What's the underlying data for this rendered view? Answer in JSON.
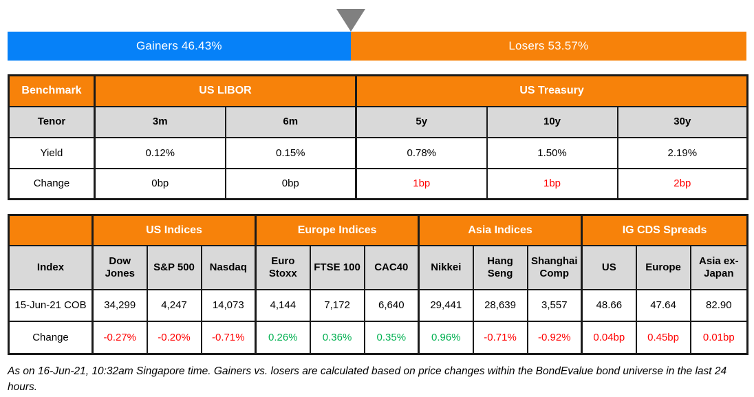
{
  "meter": {
    "triangle_icon": "down-triangle",
    "gainers_label": "Gainers 46.43%",
    "losers_label": "Losers 53.57%",
    "gainers_pct": 46.43,
    "losers_pct": 53.57,
    "gainers_color": "#0681F8",
    "losers_color": "#F7820A",
    "triangle_color": "#808080"
  },
  "benchmark_table": {
    "corner_label": "Benchmark",
    "groups": [
      {
        "label": "US LIBOR"
      },
      {
        "label": "US Treasury"
      }
    ],
    "tenor_label": "Tenor",
    "yield_label": "Yield",
    "change_label": "Change",
    "columns": [
      {
        "tenor": "3m",
        "yield": "0.12%",
        "change": "0bp",
        "change_color": "#000000"
      },
      {
        "tenor": "6m",
        "yield": "0.15%",
        "change": "0bp",
        "change_color": "#000000"
      },
      {
        "tenor": "5y",
        "yield": "0.78%",
        "change": "1bp",
        "change_color": "#FF0000"
      },
      {
        "tenor": "10y",
        "yield": "1.50%",
        "change": "1bp",
        "change_color": "#FF0000"
      },
      {
        "tenor": "30y",
        "yield": "2.19%",
        "change": "2bp",
        "change_color": "#FF0000"
      }
    ]
  },
  "indices_table": {
    "corner_label": "Index",
    "row_label": "15-Jun-21 COB",
    "change_label": "Change",
    "groups": [
      {
        "label": "US Indices"
      },
      {
        "label": "Europe Indices"
      },
      {
        "label": "Asia Indices"
      },
      {
        "label": "IG CDS Spreads"
      }
    ],
    "columns": [
      {
        "name": "Dow Jones",
        "value": "34,299",
        "change": "-0.27%",
        "change_color": "#FF0000"
      },
      {
        "name": "S&P 500",
        "value": "4,247",
        "change": "-0.20%",
        "change_color": "#FF0000"
      },
      {
        "name": "Nasdaq",
        "value": "14,073",
        "change": "-0.71%",
        "change_color": "#FF0000"
      },
      {
        "name": "Euro Stoxx",
        "value": "4,144",
        "change": "0.26%",
        "change_color": "#00B050"
      },
      {
        "name": "FTSE 100",
        "value": "7,172",
        "change": "0.36%",
        "change_color": "#00B050"
      },
      {
        "name": "CAC40",
        "value": "6,640",
        "change": "0.35%",
        "change_color": "#00B050"
      },
      {
        "name": "Nikkei",
        "value": "29,441",
        "change": "0.96%",
        "change_color": "#00B050"
      },
      {
        "name": "Hang Seng",
        "value": "28,639",
        "change": "-0.71%",
        "change_color": "#FF0000"
      },
      {
        "name": "Shanghai Comp",
        "value": "3,557",
        "change": "-0.92%",
        "change_color": "#FF0000"
      },
      {
        "name": "US",
        "value": "48.66",
        "change": "0.04bp",
        "change_color": "#FF0000"
      },
      {
        "name": "Europe",
        "value": "47.64",
        "change": "0.45bp",
        "change_color": "#FF0000"
      },
      {
        "name": "Asia ex-Japan",
        "value": "82.90",
        "change": "0.01bp",
        "change_color": "#FF0000"
      }
    ]
  },
  "footnote": "As on 16-Jun-21, 10:32am Singapore time. Gainers vs. losers are calculated based on price changes within the BondEvalue bond universe in the last 24 hours.",
  "colors": {
    "header_orange": "#F7820A",
    "subheader_gray": "#D9D9D9",
    "negative_red": "#FF0000",
    "positive_green": "#00B050",
    "gainers_blue": "#0681F8",
    "triangle_gray": "#808080",
    "border_black": "#1A1A1A"
  },
  "chart_data": [
    {
      "type": "bar",
      "subtype": "horizontal-stacked-percentage",
      "title": "Gainers vs Losers",
      "series": [
        {
          "name": "Gainers",
          "value": 46.43,
          "color": "#0681F8"
        },
        {
          "name": "Losers",
          "value": 53.57,
          "color": "#F7820A"
        }
      ],
      "unit": "%",
      "annotations": [
        "marker triangle at 46.43% boundary"
      ]
    },
    {
      "type": "table",
      "title": "Benchmark",
      "column_groups": [
        {
          "label": "US LIBOR",
          "columns": [
            "3m",
            "6m"
          ]
        },
        {
          "label": "US Treasury",
          "columns": [
            "5y",
            "10y",
            "30y"
          ]
        }
      ],
      "columns": [
        "3m",
        "6m",
        "5y",
        "10y",
        "30y"
      ],
      "rows": [
        {
          "label": "Yield",
          "values": [
            "0.12%",
            "0.15%",
            "0.78%",
            "1.50%",
            "2.19%"
          ]
        },
        {
          "label": "Change",
          "values": [
            "0bp",
            "0bp",
            "1bp",
            "1bp",
            "2bp"
          ]
        }
      ]
    },
    {
      "type": "table",
      "title": "Index",
      "column_groups": [
        {
          "label": "US Indices",
          "columns": [
            "Dow Jones",
            "S&P 500",
            "Nasdaq"
          ]
        },
        {
          "label": "Europe Indices",
          "columns": [
            "Euro Stoxx",
            "FTSE 100",
            "CAC40"
          ]
        },
        {
          "label": "Asia Indices",
          "columns": [
            "Nikkei",
            "Hang Seng",
            "Shanghai Comp"
          ]
        },
        {
          "label": "IG CDS Spreads",
          "columns": [
            "US",
            "Europe",
            "Asia ex-Japan"
          ]
        }
      ],
      "columns": [
        "Dow Jones",
        "S&P 500",
        "Nasdaq",
        "Euro Stoxx",
        "FTSE 100",
        "CAC40",
        "Nikkei",
        "Hang Seng",
        "Shanghai Comp",
        "US",
        "Europe",
        "Asia ex-Japan"
      ],
      "rows": [
        {
          "label": "15-Jun-21 COB",
          "values": [
            "34,299",
            "4,247",
            "14,073",
            "4,144",
            "7,172",
            "6,640",
            "29,441",
            "28,639",
            "3,557",
            "48.66",
            "47.64",
            "82.90"
          ]
        },
        {
          "label": "Change",
          "values": [
            "-0.27%",
            "-0.20%",
            "-0.71%",
            "0.26%",
            "0.36%",
            "0.35%",
            "0.96%",
            "-0.71%",
            "-0.92%",
            "0.04bp",
            "0.45bp",
            "0.01bp"
          ]
        }
      ]
    }
  ]
}
